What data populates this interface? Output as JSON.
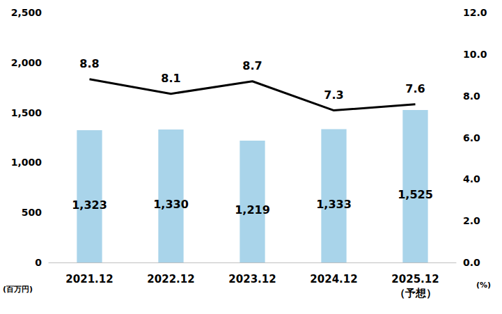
{
  "chart_data": {
    "type": "bar",
    "categories": [
      "2021.12",
      "2022.12",
      "2023.12",
      "2024.12",
      "2025.12\n（予想）"
    ],
    "y_label": "(百万円)",
    "y2_label": "(%)",
    "ylim": [
      0,
      2500
    ],
    "yticks": [
      0,
      500,
      {
        "value": 1000,
        "label": "1,000"
      },
      {
        "value": 1500,
        "label": "1,500"
      },
      {
        "value": 2000,
        "label": "2,000"
      },
      {
        "value": 2500,
        "label": "2,500"
      }
    ],
    "y2lim": [
      0,
      12
    ],
    "y2ticks": [
      {
        "value": 0,
        "label": "0.0"
      },
      {
        "value": 2,
        "label": "2.0"
      },
      {
        "value": 4,
        "label": "4.0"
      },
      {
        "value": 6,
        "label": "6.0"
      },
      {
        "value": 8,
        "label": "8.0"
      },
      {
        "value": 10,
        "label": "10.0"
      },
      {
        "value": 12,
        "label": "12.0"
      }
    ],
    "grid": false,
    "data_labels": true,
    "series": [
      {
        "type": "bar",
        "color": "#a9d4ea",
        "values": [
          1323,
          1330,
          1219,
          1333,
          1525
        ],
        "value_labels": [
          "1,323",
          "1,330",
          "1,219",
          "1,333",
          "1,525"
        ]
      },
      {
        "type": "line",
        "axis": "y2",
        "color": "#000000",
        "line_style": "solid",
        "values": [
          8.8,
          8.1,
          8.7,
          7.3,
          7.6
        ]
      }
    ]
  }
}
